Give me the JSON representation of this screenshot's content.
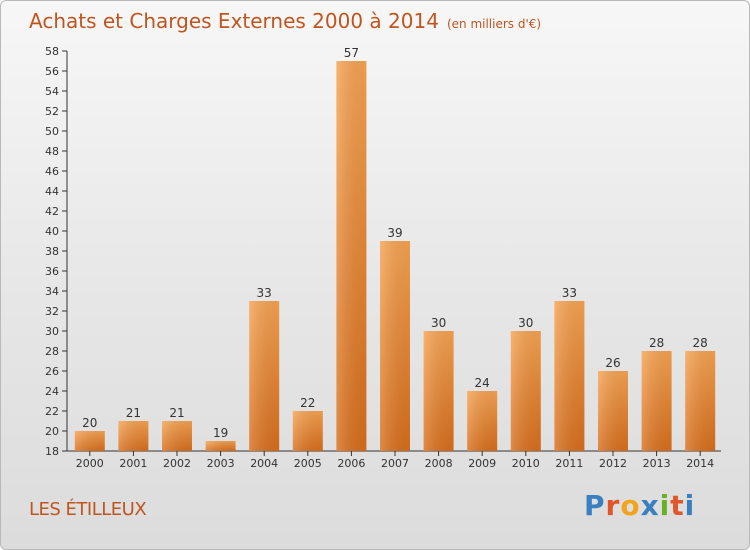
{
  "header": {
    "title": "Achats et Charges Externes 2000 à 2014",
    "unit": "(en milliers d'€)"
  },
  "footer": {
    "place": "LES ÉTILLEUX",
    "logo": "Proxiti"
  },
  "colors": {
    "title": "#c0551f",
    "bar_top": "#f6a352",
    "bar_bottom": "#d86e1c"
  },
  "chart_data": {
    "type": "bar",
    "title": "Achats et Charges Externes 2000 à 2014",
    "subtitle": "(en milliers d'€)",
    "categories": [
      "2000",
      "2001",
      "2002",
      "2003",
      "2004",
      "2005",
      "2006",
      "2007",
      "2008",
      "2009",
      "2010",
      "2011",
      "2012",
      "2013",
      "2014"
    ],
    "values": [
      20,
      21,
      21,
      19,
      33,
      22,
      57,
      39,
      30,
      24,
      30,
      33,
      26,
      28,
      28
    ],
    "ylim": [
      18,
      58
    ],
    "yticks": [
      18,
      20,
      22,
      24,
      26,
      28,
      30,
      32,
      34,
      36,
      38,
      40,
      42,
      44,
      46,
      48,
      50,
      52,
      54,
      56,
      58
    ],
    "grid": false,
    "data_labels": true
  }
}
